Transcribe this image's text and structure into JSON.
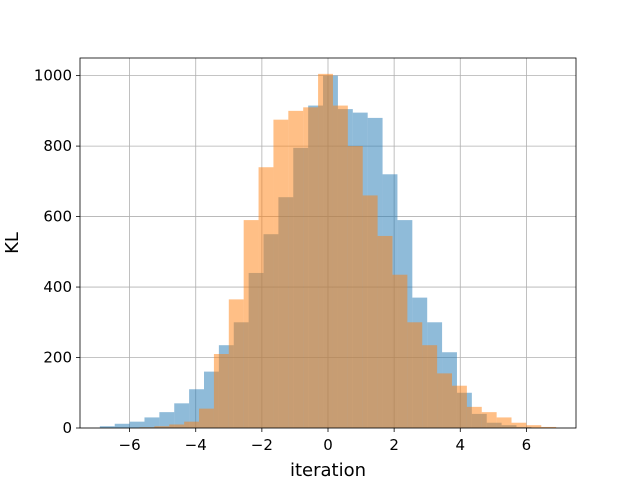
{
  "chart_data": {
    "type": "histogram",
    "xlabel": "iteration",
    "ylabel": "KL",
    "xlim": [
      -7.5,
      7.5
    ],
    "ylim": [
      0,
      1050
    ],
    "grid": true,
    "x_ticks": [
      -6,
      -4,
      -2,
      0,
      2,
      4,
      6
    ],
    "y_ticks": [
      0,
      200,
      400,
      600,
      800,
      1000
    ],
    "series": [
      {
        "color": "#1f77b4",
        "opacity": 0.5,
        "bins": [
          [
            -6.9,
            -6.45,
            5
          ],
          [
            -6.45,
            -6.0,
            12
          ],
          [
            -6.0,
            -5.55,
            18
          ],
          [
            -5.55,
            -5.1,
            30
          ],
          [
            -5.1,
            -4.65,
            45
          ],
          [
            -4.65,
            -4.2,
            70
          ],
          [
            -4.2,
            -3.75,
            110
          ],
          [
            -3.75,
            -3.3,
            160
          ],
          [
            -3.3,
            -2.85,
            235
          ],
          [
            -2.85,
            -2.4,
            300
          ],
          [
            -2.4,
            -1.95,
            440
          ],
          [
            -1.95,
            -1.5,
            550
          ],
          [
            -1.5,
            -1.05,
            655
          ],
          [
            -1.05,
            -0.6,
            795
          ],
          [
            -0.6,
            -0.15,
            915
          ],
          [
            -0.15,
            0.3,
            1000
          ],
          [
            0.3,
            0.75,
            905
          ],
          [
            0.75,
            1.2,
            895
          ],
          [
            1.2,
            1.65,
            880
          ],
          [
            1.65,
            2.1,
            720
          ],
          [
            2.1,
            2.55,
            590
          ],
          [
            2.55,
            3.0,
            370
          ],
          [
            3.0,
            3.45,
            300
          ],
          [
            3.45,
            3.9,
            215
          ],
          [
            3.9,
            4.35,
            100
          ],
          [
            4.35,
            4.8,
            40
          ],
          [
            4.8,
            5.25,
            15
          ],
          [
            5.25,
            5.7,
            8
          ],
          [
            5.7,
            6.15,
            3
          ]
        ]
      },
      {
        "color": "#ff7f0e",
        "opacity": 0.5,
        "bins": [
          [
            -5.7,
            -5.25,
            2
          ],
          [
            -5.25,
            -4.8,
            5
          ],
          [
            -4.8,
            -4.35,
            10
          ],
          [
            -4.35,
            -3.9,
            18
          ],
          [
            -3.9,
            -3.45,
            55
          ],
          [
            -3.45,
            -3.0,
            210
          ],
          [
            -3.0,
            -2.55,
            365
          ],
          [
            -2.55,
            -2.1,
            590
          ],
          [
            -2.1,
            -1.65,
            740
          ],
          [
            -1.65,
            -1.2,
            875
          ],
          [
            -1.2,
            -0.75,
            900
          ],
          [
            -0.75,
            -0.3,
            910
          ],
          [
            -0.3,
            0.15,
            1005
          ],
          [
            0.15,
            0.6,
            915
          ],
          [
            0.6,
            1.05,
            800
          ],
          [
            1.05,
            1.5,
            660
          ],
          [
            1.5,
            1.95,
            545
          ],
          [
            1.95,
            2.4,
            435
          ],
          [
            2.4,
            2.85,
            300
          ],
          [
            2.85,
            3.3,
            235
          ],
          [
            3.3,
            3.75,
            155
          ],
          [
            3.75,
            4.2,
            120
          ],
          [
            4.2,
            4.65,
            60
          ],
          [
            4.65,
            5.1,
            45
          ],
          [
            5.1,
            5.55,
            30
          ],
          [
            5.55,
            6.0,
            15
          ],
          [
            6.0,
            6.45,
            8
          ],
          [
            6.45,
            6.9,
            3
          ]
        ]
      }
    ]
  }
}
